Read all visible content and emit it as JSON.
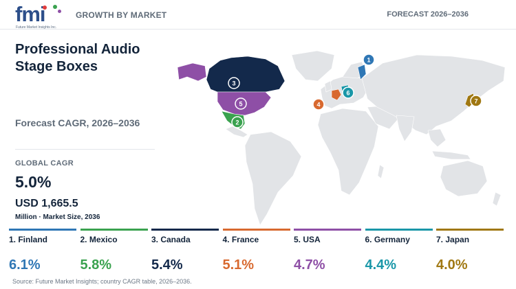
{
  "header": {
    "logo_text": "fmi",
    "logo_subtext": "Future Market Insights Inc.",
    "left_label": "GROWTH BY MARKET",
    "right_label": "FORECAST 2026–2036"
  },
  "panel": {
    "title": "Professional Audio Stage Boxes",
    "subtitle": "Forecast CAGR, 2026–2036",
    "global_cagr_label": "GLOBAL CAGR",
    "global_cagr_value": "5.0%",
    "market_size_value": "USD 1,665.5",
    "market_size_label": "Million · Market Size, 2036"
  },
  "colors": {
    "finland": "#2f77b5",
    "mexico": "#3aa24f",
    "canada": "#13294b",
    "france": "#d8692f",
    "usa": "#8e4fa6",
    "germany": "#1a97a8",
    "japan": "#a07812",
    "land": "#e2e4e7"
  },
  "chart_data": {
    "type": "table",
    "metric": "CAGR",
    "unit": "%",
    "categories": [
      "Finland",
      "Mexico",
      "Canada",
      "France",
      "USA",
      "Germany",
      "Japan"
    ],
    "ranks": [
      1,
      2,
      3,
      4,
      5,
      6,
      7
    ],
    "values": [
      6.1,
      5.8,
      5.4,
      5.1,
      4.7,
      4.4,
      4.0
    ],
    "rows": [
      {
        "label": "1. Finland",
        "value": "6.1%",
        "marker": "1",
        "color": "#2f77b5"
      },
      {
        "label": "2. Mexico",
        "value": "5.8%",
        "marker": "2",
        "color": "#3aa24f"
      },
      {
        "label": "3. Canada",
        "value": "5.4%",
        "marker": "3",
        "color": "#13294b"
      },
      {
        "label": "4. France",
        "value": "5.1%",
        "marker": "4",
        "color": "#d8692f"
      },
      {
        "label": "5. USA",
        "value": "4.7%",
        "marker": "5",
        "color": "#8e4fa6"
      },
      {
        "label": "6. Germany",
        "value": "4.4%",
        "marker": "6",
        "color": "#1a97a8"
      },
      {
        "label": "7. Japan",
        "value": "4.0%",
        "marker": "7",
        "color": "#a07812"
      }
    ]
  },
  "footer": {
    "source": "Source: Future Market Insights; country CAGR table, 2026–2036."
  }
}
